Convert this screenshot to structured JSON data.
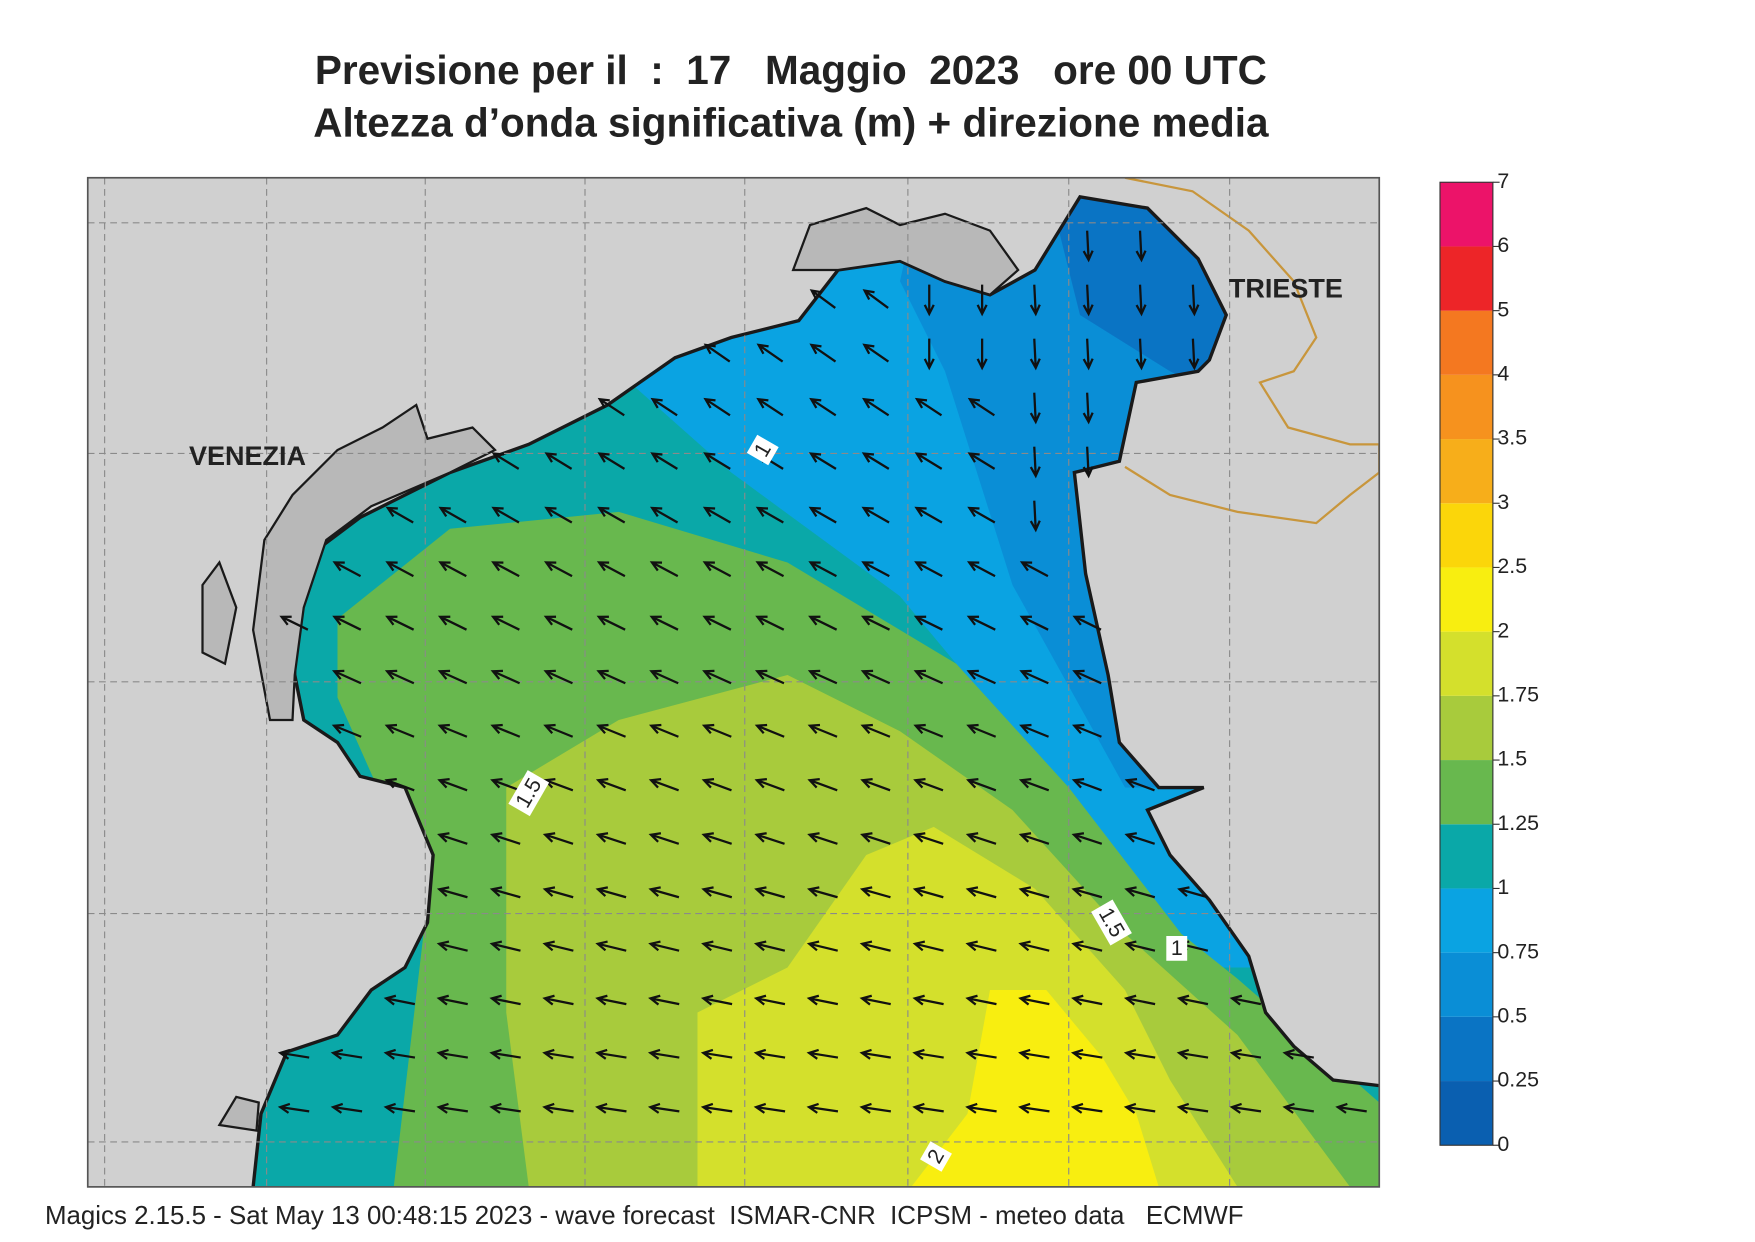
{
  "title_lines": [
    "Previsione per il  :  17   Maggio  2023   ore 00 UTC",
    "Altezza d’onda significativa (m) + direzione media"
  ],
  "places": [
    "VENEZIA",
    "TRIESTE"
  ],
  "contour_labels": [
    1,
    1.5,
    1.5,
    1,
    2
  ],
  "legend": {
    "ticks": [
      0,
      0.25,
      0.5,
      0.75,
      1,
      1.25,
      1.5,
      1.75,
      2,
      2.5,
      3,
      3.5,
      4,
      5,
      6,
      7
    ],
    "colors": [
      "#0a5fb0",
      "#0a74c4",
      "#0a8ed6",
      "#0aa3e2",
      "#0aa8a8",
      "#68b84e",
      "#a8cb3c",
      "#d4e02c",
      "#f8ee10",
      "#fbd60a",
      "#f7ae1a",
      "#f6921e",
      "#f47820",
      "#ed2528",
      "#ec1369"
    ]
  },
  "footer": "Magics 2.15.5 - Sat May 13 00:48:15 2023 - wave forecast  ISMAR-CNR  ICPSM - meteo data   ECMWF"
}
